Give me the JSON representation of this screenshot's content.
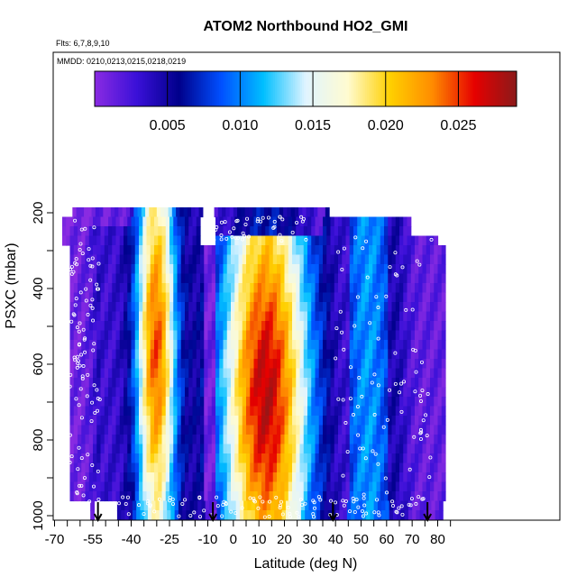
{
  "chart_data": {
    "type": "heatmap",
    "title": "ATOM2 Northbound HO2_GMI",
    "flights_label": "Flts: 6,7,8,9,10",
    "dates_label": "MMDD: 0210,0213,0215,0218,0219",
    "xlabel": "Latitude (deg N)",
    "ylabel": "PSXC (mbar)",
    "xlim": [
      -70,
      85
    ],
    "ylim": [
      1010,
      60
    ],
    "y_reversed": true,
    "x_ticks": [
      -70,
      -55,
      -40,
      -25,
      -10,
      0,
      10,
      20,
      30,
      40,
      50,
      60,
      70,
      80
    ],
    "y_ticks": [
      200,
      400,
      600,
      800,
      1000
    ],
    "colorbar": {
      "min": 0,
      "max": 0.029,
      "ticks": [
        "0.005",
        "0.010",
        "0.015",
        "0.020",
        "0.025"
      ],
      "tick_values": [
        0.005,
        0.01,
        0.015,
        0.02,
        0.025
      ],
      "colors": [
        "#8a2be2",
        "#3a10d8",
        "#00008b",
        "#0050ff",
        "#00bfff",
        "#e0f4ff",
        "#fffbd0",
        "#ffd000",
        "#ff8c00",
        "#e60000",
        "#8b1a1a"
      ]
    },
    "arrow_latitudes": [
      -53,
      -8,
      39,
      76
    ],
    "grid": false
  }
}
